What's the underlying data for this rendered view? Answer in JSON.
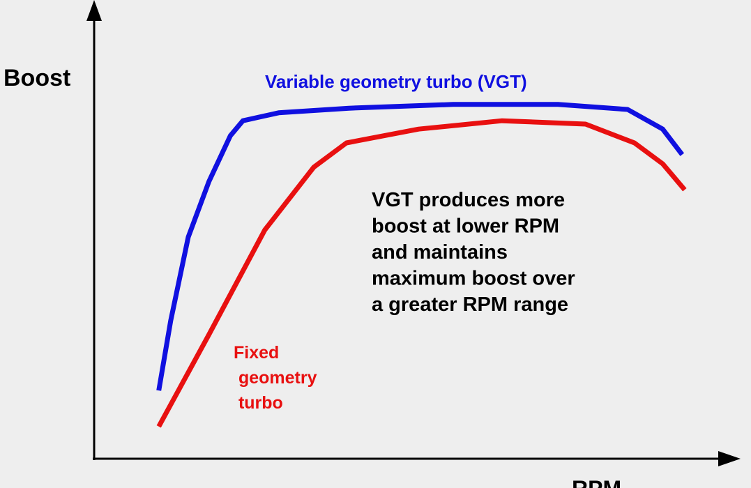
{
  "chart_data": {
    "type": "line",
    "y_label": "Boost",
    "x_label": "RPM",
    "xlim": [
      0,
      100
    ],
    "ylim": [
      0,
      100
    ],
    "series": [
      {
        "name": "Variable geometry turbo (VGT)",
        "color": "#1010e0",
        "x": [
          10.3,
          12.2,
          15,
          18.3,
          21.7,
          23.7,
          29.4,
          40.6,
          57.2,
          73.9,
          85,
          90.6,
          93.7
        ],
        "values": [
          16.3,
          33,
          53,
          66.3,
          77.2,
          80.8,
          82.7,
          83.8,
          84.7,
          84.7,
          83.5,
          78.8,
          72.7
        ]
      },
      {
        "name": "Fixed geometry turbo",
        "color": "#e81010",
        "x": [
          10.3,
          18.3,
          27.2,
          35,
          40.2,
          51.7,
          65,
          78.3,
          86.1,
          90.6,
          94.1
        ],
        "values": [
          7.7,
          29.7,
          54.7,
          69.7,
          75.5,
          78.8,
          80.8,
          80,
          75.5,
          70.5,
          64.3
        ]
      }
    ],
    "annotation": [
      "VGT produces more",
      "boost at lower RPM",
      "and maintains",
      "maximum boost over",
      "a greater RPM range"
    ]
  }
}
